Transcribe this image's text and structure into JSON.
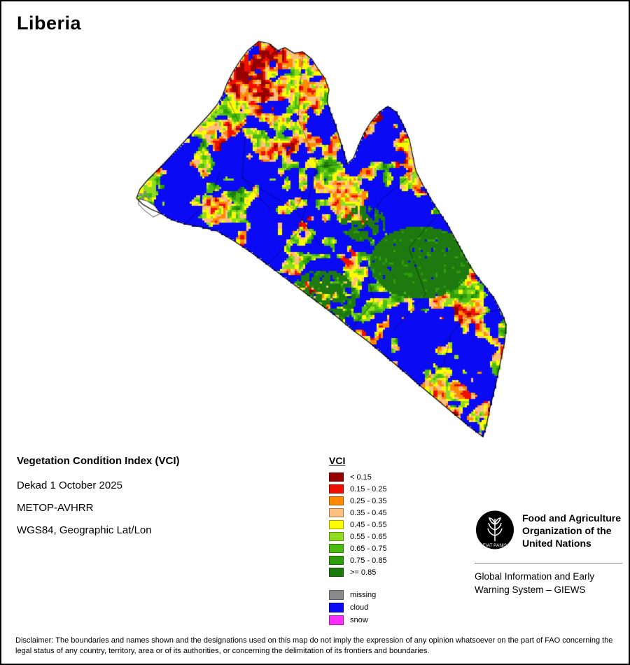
{
  "title": "Liberia",
  "meta": {
    "product": "Vegetation Condition Index (VCI)",
    "dekad": "Dekad 1 October 2025",
    "sensor": "METOP-AVHRR",
    "projection": "WGS84, Geographic Lat/Lon"
  },
  "legend": {
    "title": "VCI",
    "classes": [
      {
        "label": "< 0.15",
        "color": "#970000"
      },
      {
        "label": "0.15 - 0.25",
        "color": "#ee0f00"
      },
      {
        "label": "0.25 - 0.35",
        "color": "#ff8a00"
      },
      {
        "label": "0.35 - 0.45",
        "color": "#ffbf7e"
      },
      {
        "label": "0.45 - 0.55",
        "color": "#fdfd00"
      },
      {
        "label": "0.55 - 0.65",
        "color": "#8fdc1f"
      },
      {
        "label": "0.65 - 0.75",
        "color": "#4cbc12"
      },
      {
        "label": "0.75 - 0.85",
        "color": "#2f9c0a"
      },
      {
        "label": ">= 0.85",
        "color": "#1e7a0f"
      }
    ],
    "extra_classes": [
      {
        "label": "missing",
        "color": "#8a8a8a"
      },
      {
        "label": "cloud",
        "color": "#0a0af5"
      },
      {
        "label": "snow",
        "color": "#fb2efb"
      }
    ]
  },
  "footer": {
    "fao_lines": [
      "Food and Agriculture",
      "Organization of the",
      "United Nations"
    ],
    "fao_motto": "FIAT PANIS",
    "giews_lines": [
      "Global Information and Early",
      "Warning System – GIEWS"
    ],
    "disclaimer": "Disclaimer: The boundaries and names shown and the designations used on this map do not imply the expression of any opinion whatsoever on the part of FAO concerning the legal status of any country, territory, area or of its authorities, or concerning the delimitation of its frontiers and boundaries."
  }
}
